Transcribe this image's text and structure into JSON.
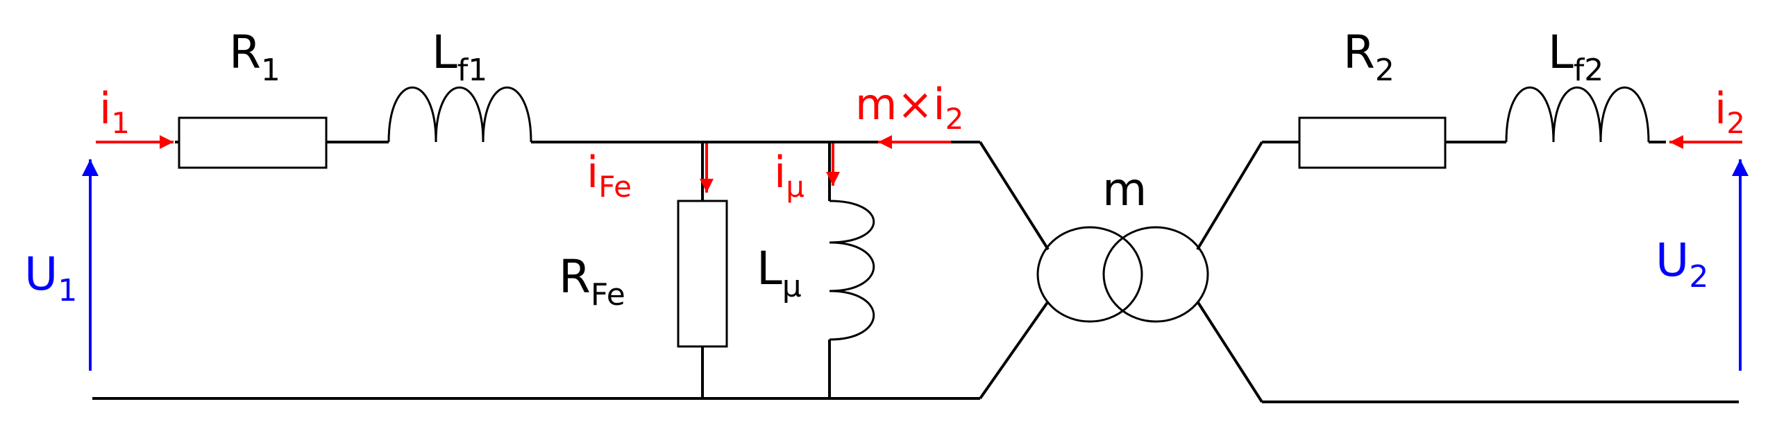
{
  "colors": {
    "circuit": "#000000",
    "current": "#ff0000",
    "voltage": "#0000ff",
    "background": "#ffffff"
  },
  "labels": {
    "R1": {
      "main": "R",
      "sub": "1"
    },
    "Lf1": {
      "main": "L",
      "sub": "f1"
    },
    "R2": {
      "main": "R",
      "sub": "2"
    },
    "Lf2": {
      "main": "L",
      "sub": "f2"
    },
    "RFe": {
      "main": "R",
      "sub": "Fe"
    },
    "Lmu": {
      "main": "L",
      "sub": "μ"
    },
    "m": "m"
  },
  "currents": {
    "i1": {
      "main": "i",
      "sub": "1"
    },
    "iFe": {
      "main": "i",
      "sub": "Fe"
    },
    "imu": {
      "main": "i",
      "sub": "μ"
    },
    "mi2": {
      "main": "m×i",
      "sub": "2"
    },
    "i2": {
      "main": "i",
      "sub": "2"
    }
  },
  "voltages": {
    "U1": {
      "main": "U",
      "sub": "1"
    },
    "U2": {
      "main": "U",
      "sub": "2"
    }
  }
}
